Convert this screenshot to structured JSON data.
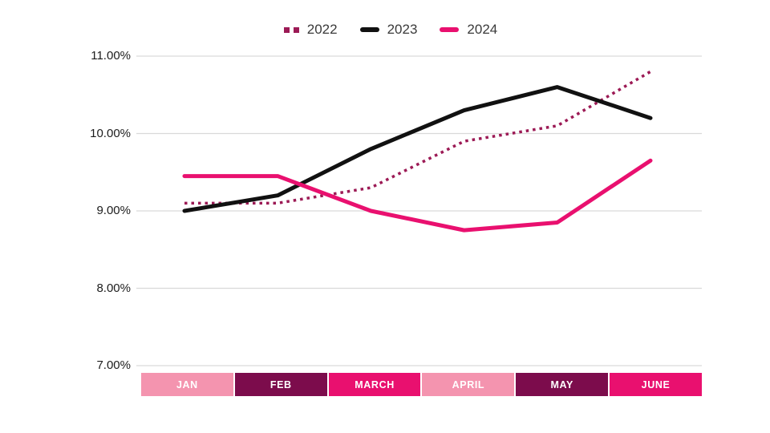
{
  "chart_data": {
    "type": "line",
    "title": "",
    "categories": [
      "JAN",
      "FEB",
      "MARCH",
      "APRIL",
      "MAY",
      "JUNE"
    ],
    "series": [
      {
        "name": "2022",
        "style": "dotted",
        "color": "#9C1A55",
        "values": [
          9.1,
          9.1,
          9.3,
          9.9,
          10.1,
          10.8
        ]
      },
      {
        "name": "2023",
        "style": "solid",
        "color": "#111111",
        "values": [
          9.0,
          9.2,
          9.8,
          10.3,
          10.6,
          10.2
        ]
      },
      {
        "name": "2024",
        "style": "solid",
        "color": "#E9106F",
        "values": [
          9.45,
          9.45,
          9.0,
          8.75,
          8.85,
          9.65
        ]
      }
    ],
    "y_ticks": [
      "11.00%",
      "10.00%",
      "9.00%",
      "8.00%",
      "7.00%"
    ],
    "y_tick_values": [
      11,
      10,
      9,
      8,
      7
    ],
    "ylim": [
      7,
      11
    ],
    "xlabel": "",
    "ylabel": "",
    "grid": "horizontal",
    "grid_color": "#D9D9D9",
    "legend_position": "top-center",
    "category_box_colors": [
      "#F494AF",
      "#7C0C4C",
      "#E9106F",
      "#F494AF",
      "#7C0C4C",
      "#E9106F"
    ],
    "category_text_color": "#FFFFFF"
  }
}
